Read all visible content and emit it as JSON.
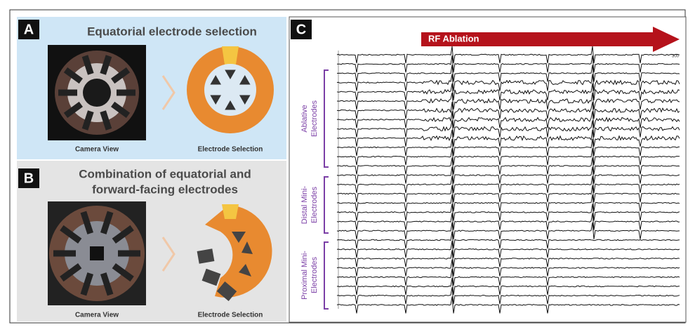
{
  "panels": [
    {
      "letter": "A",
      "title": [
        "Equatorial electrode selection"
      ],
      "left_caption": "Camera View",
      "right_caption": "Electrode Selection"
    },
    {
      "letter": "B",
      "title": [
        "Combination of equatorial and",
        "forward-facing electrodes"
      ],
      "left_caption": "Camera View",
      "right_caption": "Electrode Selection"
    },
    {
      "letter": "C",
      "arrow_label": "RF Ablation",
      "scale_label": "300",
      "groups": [
        [
          "Ablative",
          "Electrodes"
        ],
        [
          "Distal Mini-",
          "Electrodes"
        ],
        [
          "Proximal Mini-",
          "Electrodes"
        ]
      ]
    }
  ]
}
